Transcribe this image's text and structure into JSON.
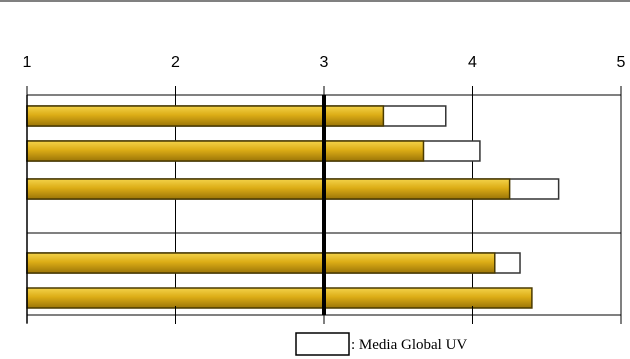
{
  "chart_data": {
    "type": "bar",
    "orientation": "horizontal",
    "title": "",
    "xlabel": "",
    "ylabel": "",
    "xlim": [
      1,
      5
    ],
    "x_ticks": [
      "1",
      "2",
      "3",
      "4",
      "5"
    ],
    "grid": "vertical gridlines at each tick; thick reference line at 3",
    "reference_line": 3,
    "groups": [
      {
        "bars": [
          {
            "value": 3.4,
            "media": 3.82
          },
          {
            "value": 3.67,
            "media": 4.05
          },
          {
            "value": 4.25,
            "media": 4.58
          }
        ]
      },
      {
        "bars": [
          {
            "value": 4.15,
            "media": 4.32
          },
          {
            "value": 4.4,
            "media": null
          }
        ]
      }
    ],
    "legend": {
      "placement": "bottom-right",
      "label": ": Media Global UV"
    },
    "colors": {
      "bar_fill": "#d9aa10",
      "bar_edge": "#4a3a00",
      "media_fill": "#ffffff",
      "axis": "#000000"
    }
  }
}
